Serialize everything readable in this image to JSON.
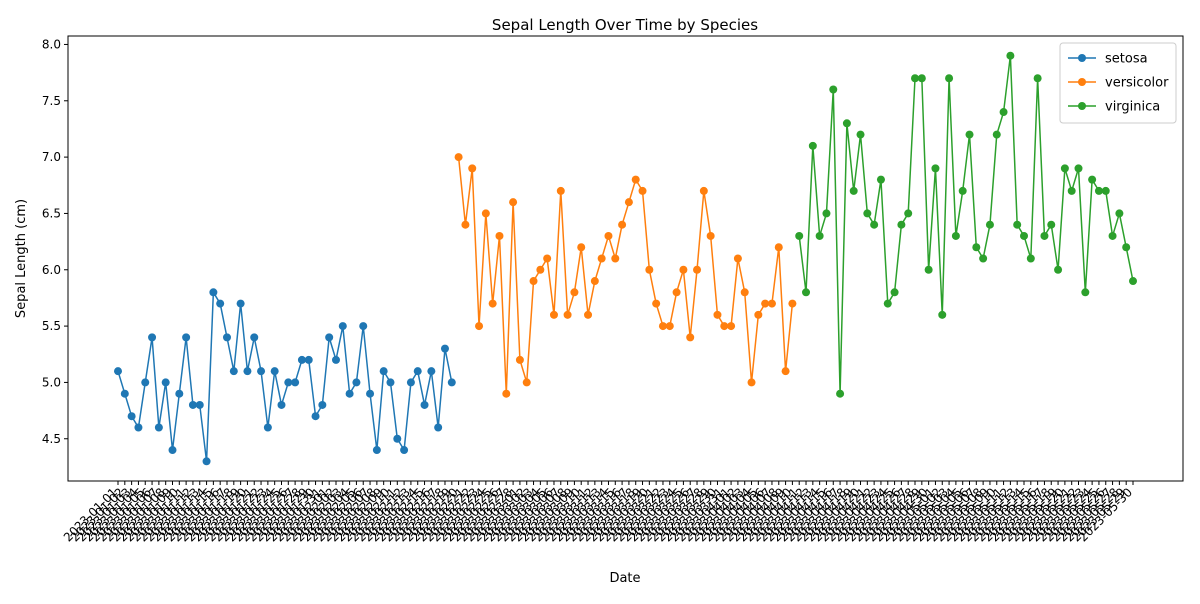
{
  "chart_data": {
    "type": "line",
    "title": "Sepal Length Over Time by Species",
    "xlabel": "Date",
    "ylabel": "Sepal Length (cm)",
    "ylim": [
      4.125,
      8.075
    ],
    "yticks": [
      "4.5",
      "5.0",
      "5.5",
      "6.0",
      "6.5",
      "7.0",
      "7.5",
      "8.0"
    ],
    "x_start_date": "2023-01-01",
    "x_count": 150,
    "x_tick_rotation_deg": 45,
    "grid": false,
    "legend_position": "top-right",
    "markers": true,
    "series": [
      {
        "name": "setosa",
        "color": "#1f77b4",
        "values": [
          5.1,
          4.9,
          4.7,
          4.6,
          5.0,
          5.4,
          4.6,
          5.0,
          4.4,
          4.9,
          5.4,
          4.8,
          4.8,
          4.3,
          5.8,
          5.7,
          5.4,
          5.1,
          5.7,
          5.1,
          5.4,
          5.1,
          4.6,
          5.1,
          4.8,
          5.0,
          5.0,
          5.2,
          5.2,
          4.7,
          4.8,
          5.4,
          5.2,
          5.5,
          4.9,
          5.0,
          5.5,
          4.9,
          4.4,
          5.1,
          5.0,
          4.5,
          4.4,
          5.0,
          5.1,
          4.8,
          5.1,
          4.6,
          5.3,
          5.0
        ]
      },
      {
        "name": "versicolor",
        "color": "#ff7f0e",
        "values": [
          7.0,
          6.4,
          6.9,
          5.5,
          6.5,
          5.7,
          6.3,
          4.9,
          6.6,
          5.2,
          5.0,
          5.9,
          6.0,
          6.1,
          5.6,
          6.7,
          5.6,
          5.8,
          6.2,
          5.6,
          5.9,
          6.1,
          6.3,
          6.1,
          6.4,
          6.6,
          6.8,
          6.7,
          6.0,
          5.7,
          5.5,
          5.5,
          5.8,
          6.0,
          5.4,
          6.0,
          6.7,
          6.3,
          5.6,
          5.5,
          5.5,
          6.1,
          5.8,
          5.0,
          5.6,
          5.7,
          5.7,
          6.2,
          5.1,
          5.7
        ]
      },
      {
        "name": "virginica",
        "color": "#2ca02c",
        "values": [
          6.3,
          5.8,
          7.1,
          6.3,
          6.5,
          7.6,
          4.9,
          7.3,
          6.7,
          7.2,
          6.5,
          6.4,
          6.8,
          5.7,
          5.8,
          6.4,
          6.5,
          7.7,
          7.7,
          6.0,
          6.9,
          5.6,
          7.7,
          6.3,
          6.7,
          7.2,
          6.2,
          6.1,
          6.4,
          7.2,
          7.4,
          7.9,
          6.4,
          6.3,
          6.1,
          7.7,
          6.3,
          6.4,
          6.0,
          6.9,
          6.7,
          6.9,
          5.8,
          6.8,
          6.7,
          6.7,
          6.3,
          6.5,
          6.2,
          5.9
        ]
      }
    ]
  }
}
